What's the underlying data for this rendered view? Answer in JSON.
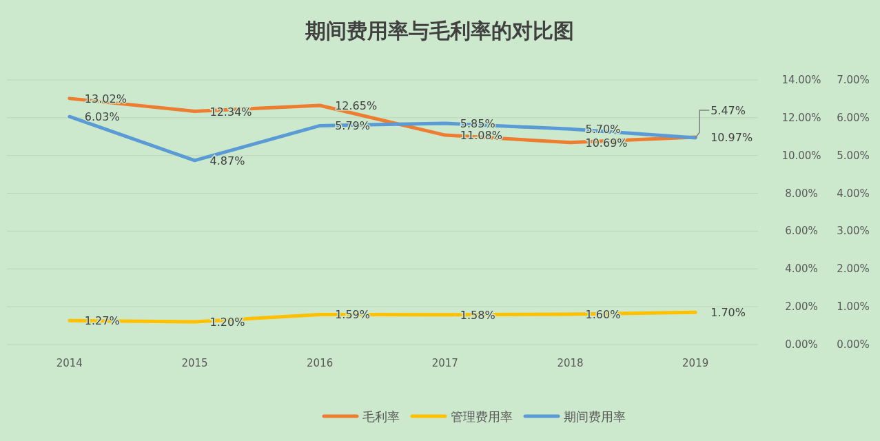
{
  "chart_data": {
    "type": "line",
    "title": "期间费用率与毛利率的对比图",
    "categories": [
      "2014",
      "2015",
      "2016",
      "2017",
      "2018",
      "2019"
    ],
    "series": [
      {
        "name": "毛利率",
        "color": "#ed7d31",
        "values": [
          13.02,
          12.34,
          12.65,
          11.08,
          10.69,
          10.97
        ],
        "value_labels": [
          "13.02%",
          "12.34%",
          "12.65%",
          "11.08%",
          "10.69%",
          "10.97%"
        ]
      },
      {
        "name": "管理费用率",
        "color": "#ffc000",
        "values": [
          1.27,
          1.2,
          1.59,
          1.58,
          1.6,
          1.7
        ],
        "value_labels": [
          "1.27%",
          "1.20%",
          "1.59%",
          "1.58%",
          "1.60%",
          "1.70%"
        ]
      },
      {
        "name": "期间费用率",
        "color": "#5b9bd5",
        "axis": "y2",
        "values": [
          6.03,
          4.87,
          5.79,
          5.85,
          5.7,
          5.47
        ],
        "value_labels": [
          "6.03%",
          "4.87%",
          "5.79%",
          "5.85%",
          "5.70%",
          "5.47%"
        ]
      }
    ],
    "ylim": [
      0,
      14
    ],
    "yticks": [
      {
        "value": 0,
        "label": "0.00%"
      },
      {
        "value": 2,
        "label": "2.00%"
      },
      {
        "value": 4,
        "label": "4.00%"
      },
      {
        "value": 6,
        "label": "6.00%"
      },
      {
        "value": 8,
        "label": "8.00%"
      },
      {
        "value": 10,
        "label": "10.00%"
      },
      {
        "value": 12,
        "label": "12.00%"
      },
      {
        "value": 14,
        "label": "14.00%"
      }
    ],
    "y2lim": [
      0,
      7
    ],
    "y2ticks": [
      {
        "value": 0,
        "label": "0.00%"
      },
      {
        "value": 1,
        "label": "1.00%"
      },
      {
        "value": 2,
        "label": "2.00%"
      },
      {
        "value": 3,
        "label": "3.00%"
      },
      {
        "value": 4,
        "label": "4.00%"
      },
      {
        "value": 5,
        "label": "5.00%"
      },
      {
        "value": 6,
        "label": "6.00%"
      },
      {
        "value": 7,
        "label": "7.00%"
      }
    ],
    "grid": "y",
    "legend": "bottom",
    "marker": "none",
    "line_style": "solid"
  }
}
